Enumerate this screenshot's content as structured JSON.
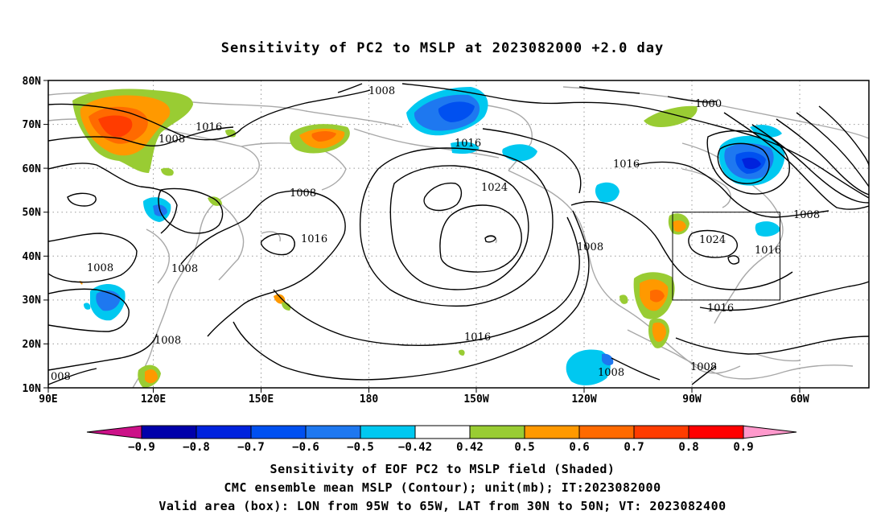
{
  "title": "Sensitivity of PC2 to MSLP at 2023082000 +2.0 day",
  "axes": {
    "lat_labels": [
      "80N",
      "70N",
      "60N",
      "50N",
      "40N",
      "30N",
      "20N",
      "10N"
    ],
    "lon_labels": [
      "90E",
      "120E",
      "150E",
      "180",
      "150W",
      "120W",
      "90W",
      "60W"
    ]
  },
  "contour_labels": [
    "1008",
    "1016",
    "1008",
    "1008",
    "1016",
    "1024",
    "1016",
    "1000",
    "1016",
    "1008",
    "1024",
    "1016",
    "1016",
    "1008",
    "1008",
    "1008",
    "1008",
    "1008",
    "1016",
    "1008",
    "008"
  ],
  "colorbar": {
    "ticks": [
      "−0.9",
      "−0.8",
      "−0.7",
      "−0.6",
      "−0.5",
      "−0.42",
      "0.42",
      "0.5",
      "0.6",
      "0.7",
      "0.8",
      "0.9"
    ],
    "colors": [
      "#0000aa",
      "#0022dd",
      "#0050f0",
      "#1e78f0",
      "#00c8f0",
      "#ffffff",
      "#99cc33",
      "#ff9900",
      "#ff6a00",
      "#ff3c00",
      "#ff0000"
    ],
    "low_extend_color": "#cc1188",
    "high_extend_color": "#ff99cc"
  },
  "captions": {
    "line1": "Sensitivity of EOF PC2 to MSLP field (Shaded)",
    "line2": "CMC ensemble mean MSLP (Contour); unit(mb); IT:2023082000",
    "line3": "Valid area (box): LON from 95W to 65W, LAT from 30N to 50N; VT: 2023082400"
  }
}
